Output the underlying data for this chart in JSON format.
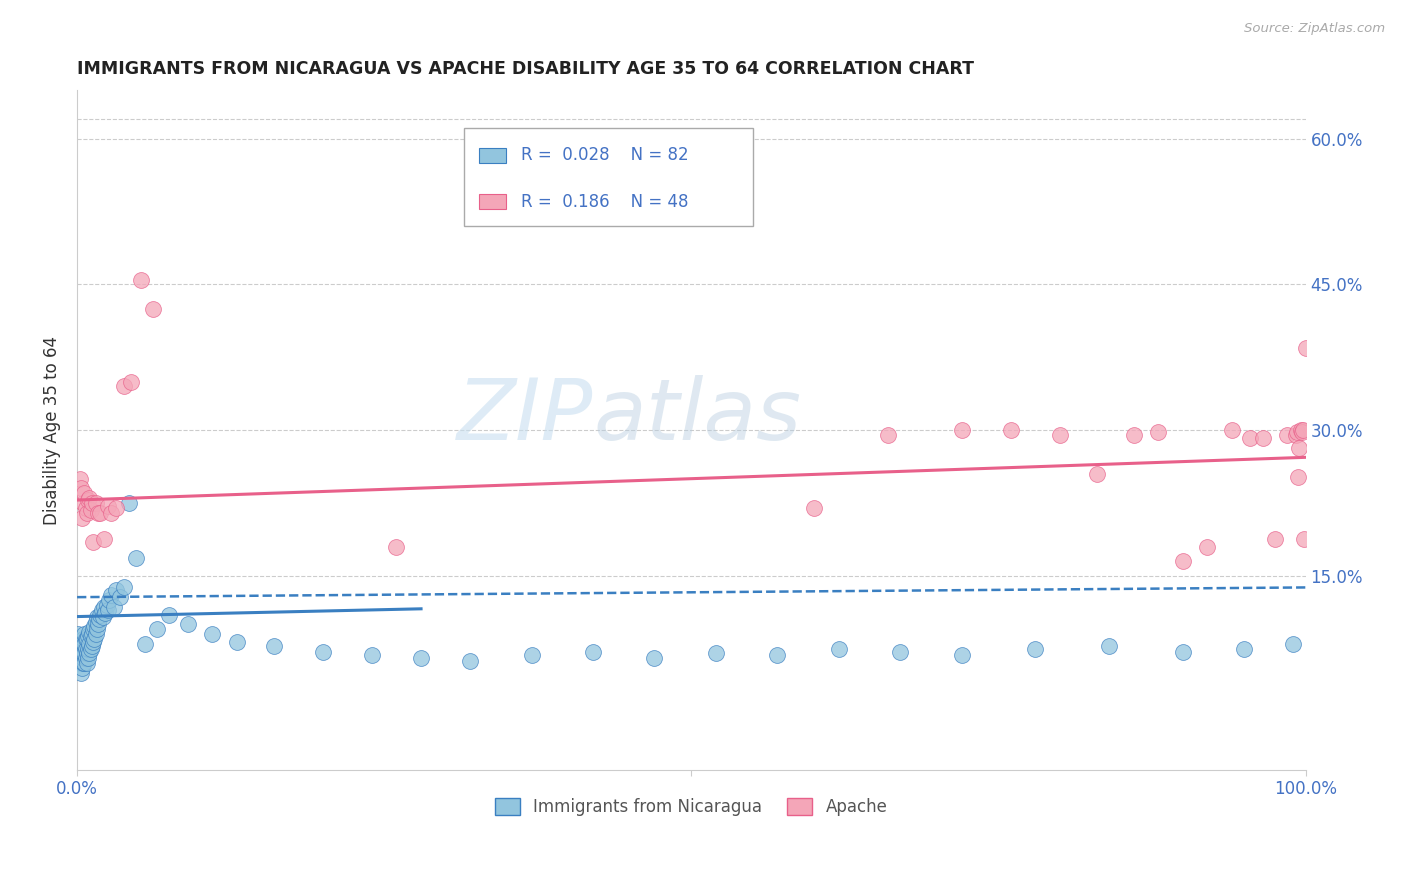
{
  "title": "IMMIGRANTS FROM NICARAGUA VS APACHE DISABILITY AGE 35 TO 64 CORRELATION CHART",
  "source": "Source: ZipAtlas.com",
  "ylabel": "Disability Age 35 to 64",
  "xlim": [
    0,
    1.0
  ],
  "ylim": [
    -0.05,
    0.65
  ],
  "yticks": [
    0.15,
    0.3,
    0.45,
    0.6
  ],
  "yticklabels": [
    "15.0%",
    "30.0%",
    "45.0%",
    "60.0%"
  ],
  "legend1_label": "Immigrants from Nicaragua",
  "legend2_label": "Apache",
  "r1": "0.028",
  "n1": "82",
  "r2": "0.186",
  "n2": "48",
  "blue_color": "#92c5de",
  "pink_color": "#f4a6b8",
  "blue_line_color": "#3a7fc1",
  "pink_line_color": "#e8608a",
  "grid_color": "#cccccc",
  "blue_scatter_x": [
    0.001,
    0.002,
    0.002,
    0.003,
    0.003,
    0.003,
    0.004,
    0.004,
    0.004,
    0.005,
    0.005,
    0.005,
    0.005,
    0.006,
    0.006,
    0.006,
    0.006,
    0.007,
    0.007,
    0.007,
    0.008,
    0.008,
    0.008,
    0.009,
    0.009,
    0.009,
    0.01,
    0.01,
    0.01,
    0.011,
    0.011,
    0.012,
    0.012,
    0.013,
    0.013,
    0.014,
    0.014,
    0.015,
    0.015,
    0.016,
    0.016,
    0.017,
    0.018,
    0.019,
    0.02,
    0.021,
    0.022,
    0.023,
    0.024,
    0.025,
    0.026,
    0.028,
    0.03,
    0.032,
    0.035,
    0.038,
    0.042,
    0.048,
    0.055,
    0.065,
    0.075,
    0.09,
    0.11,
    0.13,
    0.16,
    0.2,
    0.24,
    0.28,
    0.32,
    0.37,
    0.42,
    0.47,
    0.52,
    0.57,
    0.62,
    0.67,
    0.72,
    0.78,
    0.84,
    0.9,
    0.95,
    0.99
  ],
  "blue_scatter_y": [
    0.09,
    0.06,
    0.08,
    0.05,
    0.065,
    0.075,
    0.055,
    0.07,
    0.08,
    0.06,
    0.065,
    0.07,
    0.085,
    0.06,
    0.07,
    0.08,
    0.09,
    0.065,
    0.075,
    0.085,
    0.06,
    0.07,
    0.085,
    0.065,
    0.075,
    0.088,
    0.07,
    0.08,
    0.092,
    0.075,
    0.088,
    0.078,
    0.09,
    0.082,
    0.095,
    0.085,
    0.098,
    0.09,
    0.102,
    0.095,
    0.108,
    0.1,
    0.105,
    0.11,
    0.115,
    0.108,
    0.118,
    0.112,
    0.12,
    0.115,
    0.125,
    0.13,
    0.118,
    0.135,
    0.128,
    0.138,
    0.225,
    0.168,
    0.08,
    0.095,
    0.11,
    0.1,
    0.09,
    0.082,
    0.078,
    0.072,
    0.068,
    0.065,
    0.062,
    0.068,
    0.072,
    0.065,
    0.07,
    0.068,
    0.075,
    0.072,
    0.068,
    0.075,
    0.078,
    0.072,
    0.075,
    0.08
  ],
  "pink_scatter_x": [
    0.002,
    0.003,
    0.004,
    0.005,
    0.006,
    0.007,
    0.008,
    0.009,
    0.01,
    0.011,
    0.012,
    0.013,
    0.015,
    0.017,
    0.019,
    0.022,
    0.025,
    0.028,
    0.032,
    0.038,
    0.044,
    0.052,
    0.062,
    0.26,
    0.6,
    0.66,
    0.72,
    0.76,
    0.8,
    0.83,
    0.86,
    0.88,
    0.9,
    0.92,
    0.94,
    0.955,
    0.965,
    0.975,
    0.985,
    0.992,
    0.993,
    0.994,
    0.995,
    0.996,
    0.997,
    0.998,
    0.999,
    1.0
  ],
  "pink_scatter_y": [
    0.25,
    0.24,
    0.21,
    0.225,
    0.235,
    0.22,
    0.215,
    0.228,
    0.23,
    0.218,
    0.225,
    0.185,
    0.225,
    0.215,
    0.215,
    0.188,
    0.222,
    0.215,
    0.22,
    0.345,
    0.35,
    0.455,
    0.425,
    0.18,
    0.22,
    0.295,
    0.3,
    0.3,
    0.295,
    0.255,
    0.295,
    0.298,
    0.165,
    0.18,
    0.3,
    0.292,
    0.292,
    0.188,
    0.295,
    0.295,
    0.298,
    0.252,
    0.282,
    0.3,
    0.298,
    0.3,
    0.188,
    0.385
  ],
  "blue_solid_line": [
    0.0,
    0.28,
    0.108,
    0.116
  ],
  "blue_dashed_line": [
    0.0,
    1.0,
    0.128,
    0.138
  ],
  "pink_solid_line": [
    0.0,
    1.0,
    0.228,
    0.272
  ]
}
